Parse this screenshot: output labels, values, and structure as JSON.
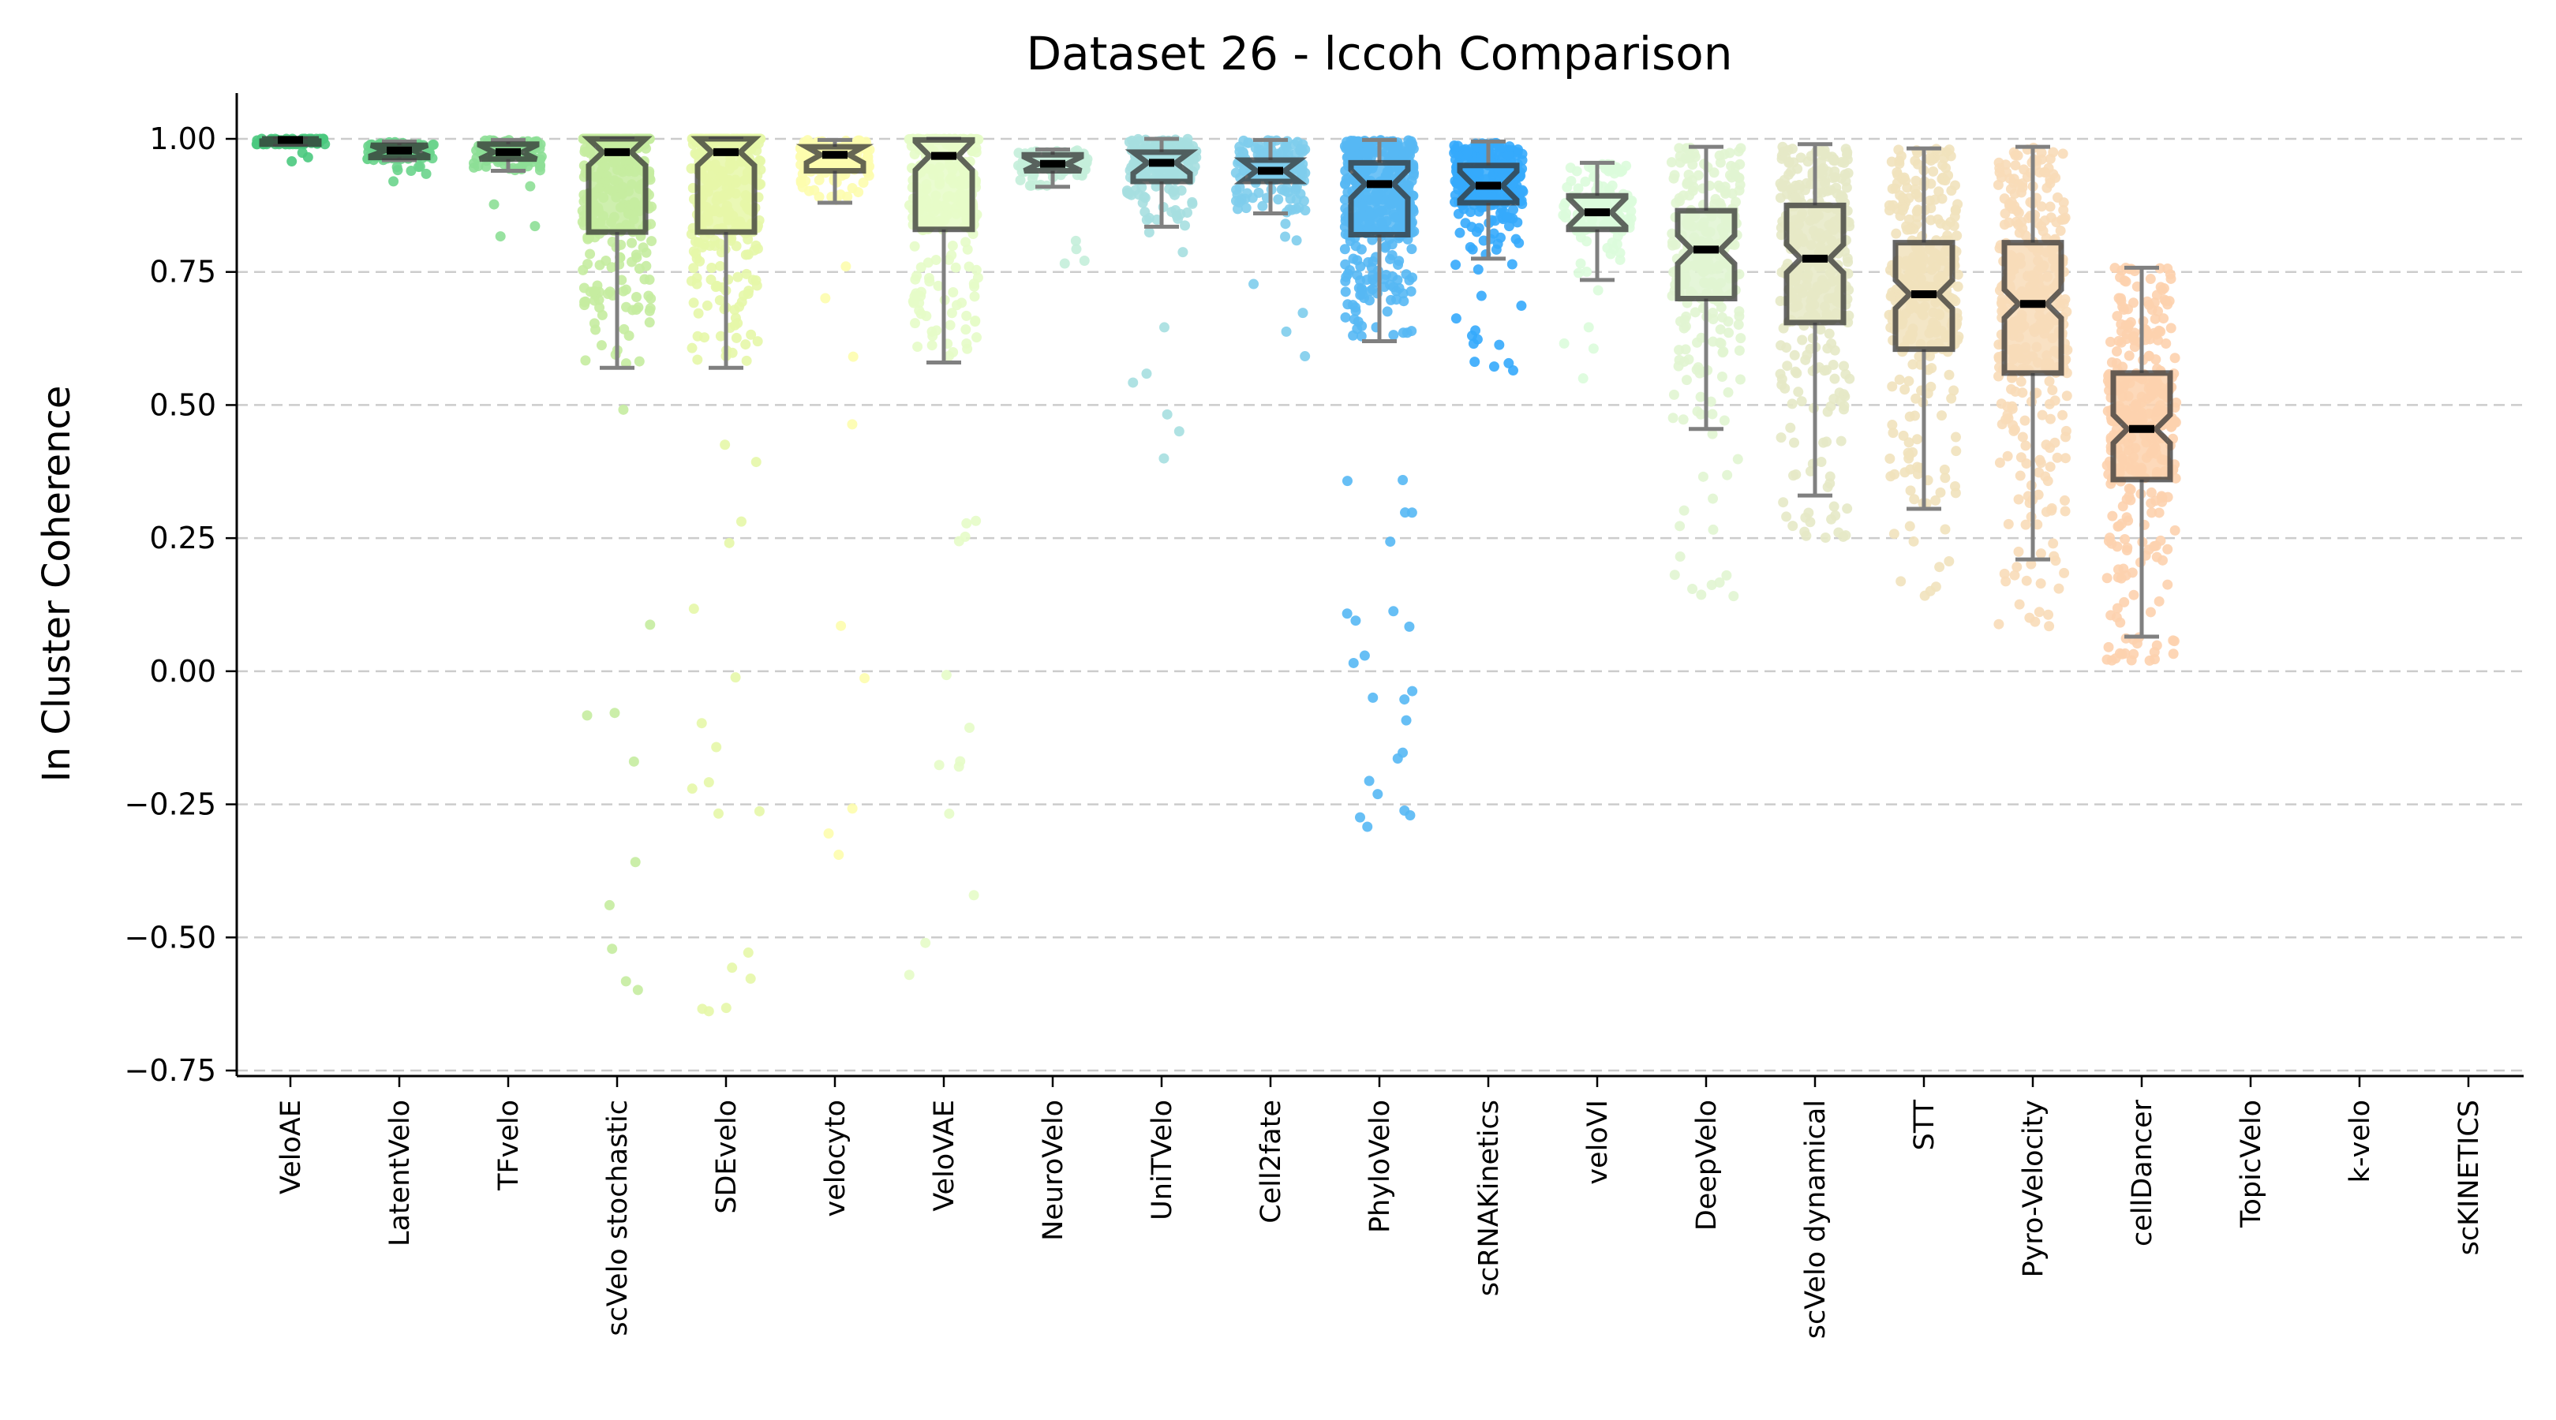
{
  "chart_data": {
    "type": "box",
    "title": "Dataset 26 - lccoh Comparison",
    "xlabel": "",
    "ylabel": "In Cluster Coherence",
    "ylim": [
      -0.76,
      1.08
    ],
    "yticks": [
      1.0,
      0.75,
      0.5,
      0.25,
      0.0,
      -0.25,
      -0.5,
      -0.75
    ],
    "ytick_labels": [
      "1.00",
      "0.75",
      "0.50",
      "0.25",
      "0.00",
      "−0.25",
      "−0.50",
      "−0.75"
    ],
    "grid": "horizontal-dashed",
    "notched": true,
    "categories": [
      "VeloAE",
      "LatentVelo",
      "TFvelo",
      "scVelo stochastic",
      "SDEvelo",
      "velocyto",
      "VeloVAE",
      "NeuroVelo",
      "UniTVelo",
      "Cell2fate",
      "PhyloVelo",
      "scRNAKinetics",
      "veloVI",
      "DeepVelo",
      "scVelo dynamical",
      "STT",
      "Pyro-Velocity",
      "cellDancer",
      "TopicVelo",
      "k-velo",
      "scKINETICS"
    ],
    "series": [
      {
        "name": "VeloAE",
        "color": "#4ac97e",
        "whisker_low": 0.99,
        "q1": 0.99,
        "median": 0.998,
        "q3": 1.0,
        "whisker_high": 1.0,
        "points_min": 0.955,
        "n_points": 60
      },
      {
        "name": "LatentVelo",
        "color": "#6ad48c",
        "whisker_low": 0.96,
        "q1": 0.965,
        "median": 0.978,
        "q3": 0.988,
        "whisker_high": 0.995,
        "points_min": 0.92,
        "n_points": 70
      },
      {
        "name": "TFvelo",
        "color": "#8ddf96",
        "whisker_low": 0.94,
        "q1": 0.962,
        "median": 0.975,
        "q3": 0.99,
        "whisker_high": 0.998,
        "points_min": 0.76,
        "n_points": 90
      },
      {
        "name": "scVelo stochastic",
        "color": "#c5eca0",
        "whisker_low": 0.57,
        "q1": 0.825,
        "median": 0.975,
        "q3": 1.0,
        "whisker_high": 1.0,
        "points_min": -0.67,
        "n_points": 320
      },
      {
        "name": "SDEvelo",
        "color": "#e6f7a8",
        "whisker_low": 0.57,
        "q1": 0.825,
        "median": 0.975,
        "q3": 1.0,
        "whisker_high": 1.0,
        "points_min": -0.67,
        "n_points": 320
      },
      {
        "name": "velocyto",
        "color": "#fdfdae",
        "whisker_low": 0.88,
        "q1": 0.94,
        "median": 0.97,
        "q3": 0.985,
        "whisker_high": 0.998,
        "points_min": -0.38,
        "n_points": 150
      },
      {
        "name": "VeloVAE",
        "color": "#e6fcc8",
        "whisker_low": 0.58,
        "q1": 0.83,
        "median": 0.968,
        "q3": 0.998,
        "whisker_high": 1.0,
        "points_min": -0.6,
        "n_points": 300
      },
      {
        "name": "NeuroVelo",
        "color": "#c4eeda",
        "whisker_low": 0.91,
        "q1": 0.94,
        "median": 0.953,
        "q3": 0.97,
        "whisker_high": 0.98,
        "points_min": 0.74,
        "n_points": 70
      },
      {
        "name": "UniTVelo",
        "color": "#a6dfe0",
        "whisker_low": 0.835,
        "q1": 0.92,
        "median": 0.955,
        "q3": 0.975,
        "whisker_high": 1.0,
        "points_min": 0.35,
        "n_points": 160
      },
      {
        "name": "Cell2fate",
        "color": "#7ecdec",
        "whisker_low": 0.86,
        "q1": 0.92,
        "median": 0.94,
        "q3": 0.96,
        "whisker_high": 0.998,
        "points_min": 0.58,
        "n_points": 170
      },
      {
        "name": "PhyloVelo",
        "color": "#56b8f4",
        "whisker_low": 0.62,
        "q1": 0.82,
        "median": 0.915,
        "q3": 0.955,
        "whisker_high": 0.998,
        "points_min": -0.3,
        "n_points": 420
      },
      {
        "name": "scRNAKinetics",
        "color": "#35aafc",
        "whisker_low": 0.775,
        "q1": 0.88,
        "median": 0.912,
        "q3": 0.95,
        "whisker_high": 0.995,
        "points_min": 0.56,
        "n_points": 300
      },
      {
        "name": "veloVI",
        "color": "#dbfcdc",
        "whisker_low": 0.735,
        "q1": 0.83,
        "median": 0.862,
        "q3": 0.893,
        "whisker_high": 0.955,
        "points_min": 0.55,
        "n_points": 120
      },
      {
        "name": "DeepVelo",
        "color": "#e1f5d2",
        "whisker_low": 0.455,
        "q1": 0.7,
        "median": 0.792,
        "q3": 0.865,
        "whisker_high": 0.985,
        "points_min": 0.14,
        "n_points": 260
      },
      {
        "name": "scVelo dynamical",
        "color": "#e6e9c6",
        "whisker_low": 0.33,
        "q1": 0.655,
        "median": 0.775,
        "q3": 0.875,
        "whisker_high": 0.99,
        "points_min": 0.25,
        "n_points": 320
      },
      {
        "name": "STT",
        "color": "#f1e2bc",
        "whisker_low": 0.305,
        "q1": 0.605,
        "median": 0.708,
        "q3": 0.805,
        "whisker_high": 0.982,
        "points_min": 0.13,
        "n_points": 320
      },
      {
        "name": "Pyro-Velocity",
        "color": "#f8dcb8",
        "whisker_low": 0.21,
        "q1": 0.56,
        "median": 0.69,
        "q3": 0.805,
        "whisker_high": 0.985,
        "points_min": 0.075,
        "n_points": 360
      },
      {
        "name": "cellDancer",
        "color": "#fdd2ae",
        "whisker_low": 0.065,
        "q1": 0.36,
        "median": 0.455,
        "q3": 0.56,
        "whisker_high": 0.758,
        "points_min": 0.02,
        "n_points": 340
      },
      {
        "name": "TopicVelo",
        "color": null
      },
      {
        "name": "k-velo",
        "color": null
      },
      {
        "name": "scKINETICS",
        "color": null
      }
    ]
  }
}
